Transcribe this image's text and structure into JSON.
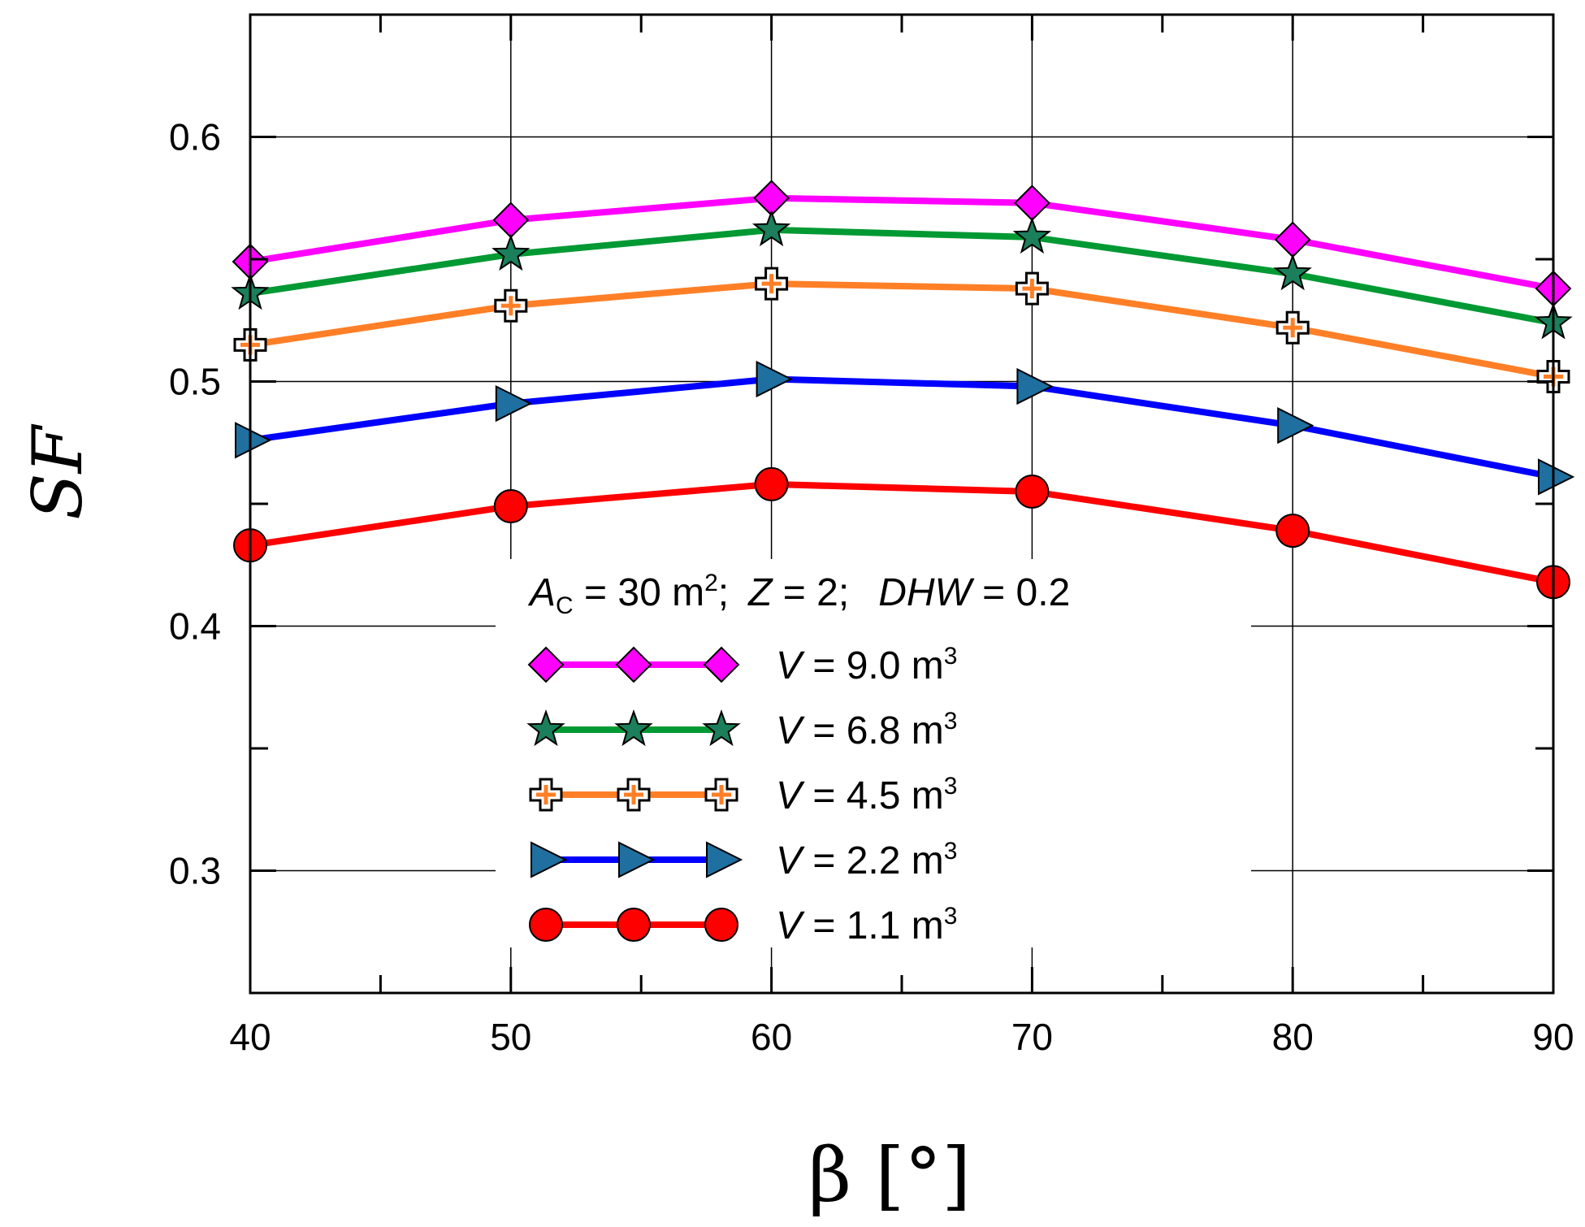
{
  "chart_data": {
    "type": "line",
    "title": "",
    "xlabel": "β [°]",
    "ylabel": "SF",
    "xlim": [
      40,
      90
    ],
    "ylim": [
      0.25,
      0.65
    ],
    "x_ticks": [
      "40",
      "50",
      "60",
      "70",
      "80",
      "90"
    ],
    "y_ticks": [
      "0.3",
      "0.4",
      "0.5",
      "0.6"
    ],
    "x_minor_step": 5,
    "y_minor_step": 0.05,
    "grid": true,
    "legend_position": "bottom-center",
    "annotation": {
      "ac_symbol": "A",
      "ac_subscript": "C",
      "ac_value": " = 30 m",
      "ac_exp": "2",
      "z_symbol": "Z",
      "z_value": " = 2;",
      "dhw_symbol": "DHW",
      "dhw_value": " = 0.2",
      "sep": ";"
    },
    "x": [
      40,
      50,
      60,
      70,
      80,
      90
    ],
    "series": [
      {
        "name": "V = 9.0 m3",
        "var": "V",
        "label_value": " = 9.0 m",
        "label_exp": "3",
        "color": "#ff00ff",
        "marker": "diamond",
        "marker_fill": "#ff00ff",
        "values": [
          0.549,
          0.566,
          0.575,
          0.573,
          0.558,
          0.538
        ]
      },
      {
        "name": "V = 6.8 m3",
        "var": "V",
        "label_value": " = 6.8 m",
        "label_exp": "3",
        "color": "#009933",
        "marker": "star",
        "marker_fill": "#1a7f5a",
        "values": [
          0.536,
          0.552,
          0.562,
          0.559,
          0.544,
          0.524
        ]
      },
      {
        "name": "V = 4.5 m3",
        "var": "V",
        "label_value": " = 4.5 m",
        "label_exp": "3",
        "color": "#ff7f27",
        "marker": "plus",
        "marker_fill": "#ffffff",
        "values": [
          0.515,
          0.531,
          0.54,
          0.538,
          0.522,
          0.502
        ]
      },
      {
        "name": "V = 2.2 m3",
        "var": "V",
        "label_value": " = 2.2 m",
        "label_exp": "3",
        "color": "#0000ff",
        "marker": "triangle-right",
        "marker_fill": "#1f6fa0",
        "values": [
          0.476,
          0.491,
          0.501,
          0.498,
          0.482,
          0.461
        ]
      },
      {
        "name": "V = 1.1 m3",
        "var": "V",
        "label_value": " = 1.1 m",
        "label_exp": "3",
        "color": "#ff0000",
        "marker": "circle",
        "marker_fill": "#ff0000",
        "values": [
          0.433,
          0.449,
          0.458,
          0.455,
          0.439,
          0.418
        ]
      }
    ]
  }
}
